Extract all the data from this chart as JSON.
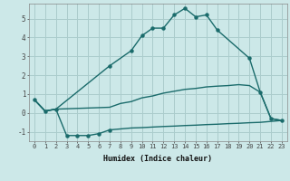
{
  "xlabel": "Humidex (Indice chaleur)",
  "background_color": "#cce8e8",
  "grid_color": "#aacccc",
  "line_color": "#1a6b6b",
  "ylim": [
    -1.5,
    5.8
  ],
  "xlim": [
    -0.5,
    23.5
  ],
  "yticks": [
    -1,
    0,
    1,
    2,
    3,
    4,
    5
  ],
  "xticks": [
    0,
    1,
    2,
    3,
    4,
    5,
    6,
    7,
    8,
    9,
    10,
    11,
    12,
    13,
    14,
    15,
    16,
    17,
    18,
    19,
    20,
    21,
    22,
    23
  ],
  "top_x": [
    0,
    1,
    2,
    7,
    9,
    10,
    11,
    12,
    13,
    14,
    15,
    16,
    17,
    20,
    21,
    22,
    23
  ],
  "top_y": [
    0.7,
    0.1,
    0.2,
    2.5,
    3.3,
    4.1,
    4.5,
    4.5,
    5.2,
    5.55,
    5.1,
    5.2,
    4.4,
    2.9,
    1.1,
    -0.3,
    -0.4
  ],
  "top_markers_x": [
    0,
    1,
    2,
    7,
    9,
    10,
    11,
    12,
    13,
    14,
    15,
    16,
    17,
    20,
    21,
    22
  ],
  "top_markers_y": [
    0.7,
    0.1,
    0.2,
    2.5,
    3.3,
    4.1,
    4.5,
    4.5,
    5.2,
    5.55,
    5.1,
    5.2,
    4.4,
    2.9,
    1.1,
    -0.3
  ],
  "mid_x": [
    0,
    1,
    2,
    7,
    8,
    9,
    10,
    11,
    12,
    13,
    14,
    15,
    16,
    17,
    18,
    19,
    20,
    21,
    22,
    23
  ],
  "mid_y": [
    0.7,
    0.1,
    0.2,
    0.3,
    0.5,
    0.6,
    0.8,
    0.9,
    1.05,
    1.15,
    1.25,
    1.3,
    1.38,
    1.42,
    1.45,
    1.5,
    1.45,
    1.1,
    -0.3,
    -0.4
  ],
  "bot_x": [
    0,
    1,
    2,
    3,
    4,
    5,
    6,
    7,
    8,
    9,
    10,
    11,
    12,
    13,
    14,
    15,
    16,
    17,
    18,
    19,
    20,
    21,
    22,
    23
  ],
  "bot_y": [
    0.7,
    0.1,
    0.2,
    -1.2,
    -1.2,
    -1.2,
    -1.1,
    -0.9,
    -0.85,
    -0.8,
    -0.78,
    -0.75,
    -0.72,
    -0.7,
    -0.67,
    -0.65,
    -0.62,
    -0.6,
    -0.57,
    -0.55,
    -0.52,
    -0.5,
    -0.45,
    -0.4
  ],
  "bot_markers_x": [
    3,
    4,
    5,
    6,
    7
  ],
  "bot_markers_y": [
    -1.2,
    -1.2,
    -1.2,
    -1.1,
    -0.9
  ]
}
